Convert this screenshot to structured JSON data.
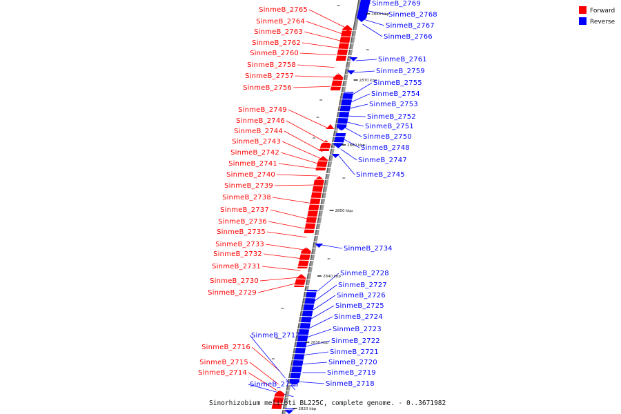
{
  "title": "Sinorhizobium meliloti BL225C, complete genome. - 0..3671982",
  "legend": [
    {
      "label": "Forward",
      "color": "#ff0000"
    },
    {
      "label": "Reverse",
      "color": "#0000ff"
    }
  ],
  "tick_labels": [
    "2880 kbp",
    "2870 kbp",
    "2860 kbp",
    "2850 kbp",
    "2840 kbp",
    "2830 kbp",
    "2820 kbp"
  ],
  "forward_genes": [
    "SinmeB_2765",
    "SinmeB_2764",
    "SinmeB_2763",
    "SinmeB_2762",
    "SinmeB_2760",
    "SinmeB_2758",
    "SinmeB_2757",
    "SinmeB_2756",
    "SinmeB_2749",
    "SinmeB_2746",
    "SinmeB_2744",
    "SinmeB_2743",
    "SinmeB_2742",
    "SinmeB_2741",
    "SinmeB_2740",
    "SinmeB_2739",
    "SinmeB_2738",
    "SinmeB_2737",
    "SinmeB_2736",
    "SinmeB_2735",
    "SinmeB_2733",
    "SinmeB_2732",
    "SinmeB_2731",
    "SinmeB_2730",
    "SinmeB_2729",
    "SinmeB_2716",
    "SinmeB_2715",
    "SinmeB_2714"
  ],
  "reverse_genes": [
    "SinmeB_2769",
    "SinmeB_2768",
    "SinmeB_2767",
    "SinmeB_2766",
    "SinmeB_2761",
    "SinmeB_2759",
    "SinmeB_2755",
    "SinmeB_2754",
    "SinmeB_2753",
    "SinmeB_2752",
    "SinmeB_2751",
    "SinmeB_2750",
    "SinmeB_2748",
    "SinmeB_2747",
    "SinmeB_2745",
    "SinmeB_2734",
    "SinmeB_2728",
    "SinmeB_2727",
    "SinmeB_2726",
    "SinmeB_2725",
    "SinmeB_2724",
    "SinmeB_2723",
    "SinmeB_2722",
    "SinmeB_2721",
    "SinmeB_2720",
    "SinmeB_2719",
    "SinmeB_2718",
    "SinmeB_2717",
    "SinmeB_2713"
  ]
}
